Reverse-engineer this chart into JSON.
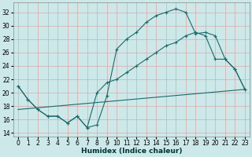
{
  "xlabel": "Humidex (Indice chaleur)",
  "background_color": "#cce8e8",
  "grid_color": "#b8d8d8",
  "line_color": "#1a6b6b",
  "xlim": [
    -0.5,
    23.5
  ],
  "ylim": [
    13.5,
    33.5
  ],
  "yticks": [
    14,
    16,
    18,
    20,
    22,
    24,
    26,
    28,
    30,
    32
  ],
  "xticks": [
    0,
    1,
    2,
    3,
    4,
    5,
    6,
    7,
    8,
    9,
    10,
    11,
    12,
    13,
    14,
    15,
    16,
    17,
    18,
    19,
    20,
    21,
    22,
    23
  ],
  "line1_x": [
    0,
    1,
    2,
    3,
    4,
    5,
    6,
    7,
    8,
    9,
    10,
    11,
    12,
    13,
    14,
    15,
    16,
    17,
    18,
    19,
    20,
    21,
    22,
    23
  ],
  "line1_y": [
    21.0,
    19.0,
    17.5,
    16.5,
    16.5,
    15.5,
    16.5,
    14.8,
    15.2,
    19.5,
    26.5,
    28.0,
    29.0,
    30.5,
    31.5,
    32.0,
    32.5,
    32.0,
    28.8,
    29.0,
    28.5,
    25.0,
    23.5,
    20.5
  ],
  "line2_x": [
    0,
    1,
    2,
    3,
    4,
    5,
    6,
    7,
    8,
    9,
    10,
    11,
    12,
    13,
    14,
    15,
    16,
    17,
    18,
    19,
    20,
    21,
    22,
    23
  ],
  "line2_y": [
    21.0,
    19.0,
    17.5,
    16.5,
    16.5,
    15.5,
    16.5,
    14.8,
    20.0,
    21.5,
    22.0,
    23.0,
    24.0,
    25.0,
    26.0,
    27.0,
    27.5,
    28.5,
    29.0,
    28.5,
    25.0,
    25.0,
    23.5,
    20.5
  ],
  "line3_x": [
    0,
    23
  ],
  "line3_y": [
    17.5,
    20.5
  ],
  "tick_fontsize": 5.5,
  "xlabel_fontsize": 6.5
}
